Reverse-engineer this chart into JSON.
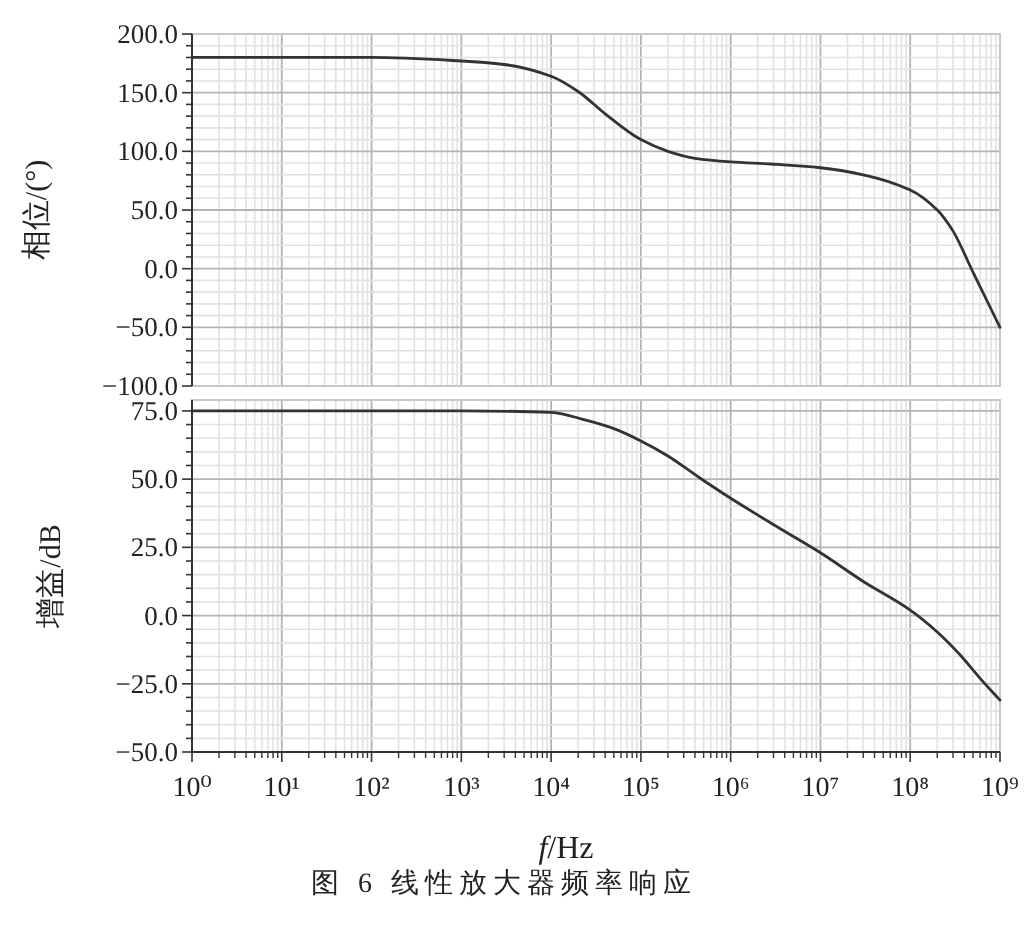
{
  "chart_data": [
    {
      "type": "line",
      "ylabel": "相位/(°)",
      "color": "#333333",
      "log": "x",
      "grid": true,
      "tick_labels": "y",
      "x": [
        1,
        10,
        100,
        1000,
        3000,
        10000,
        20000,
        40000,
        100000,
        200000,
        400000,
        1000000,
        3000000,
        10000000,
        30000000,
        100000000,
        200000000,
        300000000,
        500000000,
        1000000000
      ],
      "values": [
        180,
        180,
        180,
        177,
        174,
        164,
        151,
        132,
        110,
        100,
        94,
        91,
        89,
        86,
        80,
        67,
        50,
        32,
        -3,
        -50
      ],
      "xlim": [
        1,
        1000000000
      ],
      "xticks": [
        {
          "value": 1,
          "label": null
        },
        {
          "value": 10,
          "label": null
        },
        {
          "value": 100,
          "label": null
        },
        {
          "value": 1000,
          "label": null
        },
        {
          "value": 10000,
          "label": null
        },
        {
          "value": 100000,
          "label": null
        },
        {
          "value": 1000000,
          "label": null
        },
        {
          "value": 10000000,
          "label": null
        },
        {
          "value": 100000000,
          "label": null
        },
        {
          "value": 1000000000,
          "label": null
        }
      ],
      "ylim": [
        -100,
        200
      ],
      "yticks": [
        {
          "value": -100,
          "label": "−100.0"
        },
        {
          "value": -90,
          "label": null
        },
        {
          "value": -80,
          "label": null
        },
        {
          "value": -70,
          "label": null
        },
        {
          "value": -60,
          "label": null
        },
        {
          "value": -50,
          "label": "−50.0"
        },
        {
          "value": -40,
          "label": null
        },
        {
          "value": -30,
          "label": null
        },
        {
          "value": -20,
          "label": null
        },
        {
          "value": -10,
          "label": null
        },
        {
          "value": 0,
          "label": "0.0"
        },
        {
          "value": 10,
          "label": null
        },
        {
          "value": 20,
          "label": null
        },
        {
          "value": 30,
          "label": null
        },
        {
          "value": 40,
          "label": null
        },
        {
          "value": 50,
          "label": "50.0"
        },
        {
          "value": 60,
          "label": null
        },
        {
          "value": 70,
          "label": null
        },
        {
          "value": 80,
          "label": null
        },
        {
          "value": 90,
          "label": null
        },
        {
          "value": 100,
          "label": "100.0"
        },
        {
          "value": 110,
          "label": null
        },
        {
          "value": 120,
          "label": null
        },
        {
          "value": 130,
          "label": null
        },
        {
          "value": 140,
          "label": null
        },
        {
          "value": 150,
          "label": "150.0"
        },
        {
          "value": 160,
          "label": null
        },
        {
          "value": 170,
          "label": null
        },
        {
          "value": 180,
          "label": null
        },
        {
          "value": 190,
          "label": null
        },
        {
          "value": 200,
          "label": "200.0"
        }
      ]
    },
    {
      "type": "line",
      "ylabel": "增益/dB",
      "xlabel": "f/Hz",
      "color": "#333333",
      "log": "x",
      "grid": true,
      "x": [
        1,
        10,
        100,
        1000,
        10000,
        25000,
        50000,
        100000,
        200000,
        450000,
        1000000,
        3500000,
        10000000,
        30000000,
        100000000,
        200000000,
        350000000,
        600000000,
        1000000000
      ],
      "values": [
        75,
        75,
        75,
        75,
        74.5,
        71.5,
        68.5,
        64,
        58.5,
        50.5,
        43,
        32,
        23,
        12.5,
        2,
        -6,
        -14,
        -23,
        -31
      ],
      "xlim": [
        1,
        1000000000
      ],
      "xticks": [
        {
          "value": 1,
          "label": "10⁰"
        },
        {
          "value": 10,
          "label": "10¹"
        },
        {
          "value": 100,
          "label": "10²"
        },
        {
          "value": 1000,
          "label": "10³"
        },
        {
          "value": 10000,
          "label": "10⁴"
        },
        {
          "value": 100000,
          "label": "10⁵"
        },
        {
          "value": 1000000,
          "label": "10⁶"
        },
        {
          "value": 10000000,
          "label": "10⁷"
        },
        {
          "value": 100000000,
          "label": "10⁸"
        },
        {
          "value": 1000000000,
          "label": "10⁹"
        }
      ],
      "ylim": [
        -50,
        79
      ],
      "yticks": [
        {
          "value": -50,
          "label": "−50.0"
        },
        {
          "value": -45,
          "label": null
        },
        {
          "value": -40,
          "label": null
        },
        {
          "value": -35,
          "label": null
        },
        {
          "value": -30,
          "label": null
        },
        {
          "value": -25,
          "label": "−25.0"
        },
        {
          "value": -20,
          "label": null
        },
        {
          "value": -15,
          "label": null
        },
        {
          "value": -10,
          "label": null
        },
        {
          "value": -5,
          "label": null
        },
        {
          "value": 0,
          "label": "0.0"
        },
        {
          "value": 5,
          "label": null
        },
        {
          "value": 10,
          "label": null
        },
        {
          "value": 15,
          "label": null
        },
        {
          "value": 20,
          "label": null
        },
        {
          "value": 25,
          "label": "25.0"
        },
        {
          "value": 30,
          "label": null
        },
        {
          "value": 35,
          "label": null
        },
        {
          "value": 40,
          "label": null
        },
        {
          "value": 45,
          "label": null
        },
        {
          "value": 50,
          "label": "50.0"
        },
        {
          "value": 55,
          "label": null
        },
        {
          "value": 60,
          "label": null
        },
        {
          "value": 65,
          "label": null
        },
        {
          "value": 70,
          "label": null
        },
        {
          "value": 75,
          "label": "75.0"
        }
      ],
      "annotations": [
        "图 6  线性放大器频率响应"
      ]
    }
  ]
}
